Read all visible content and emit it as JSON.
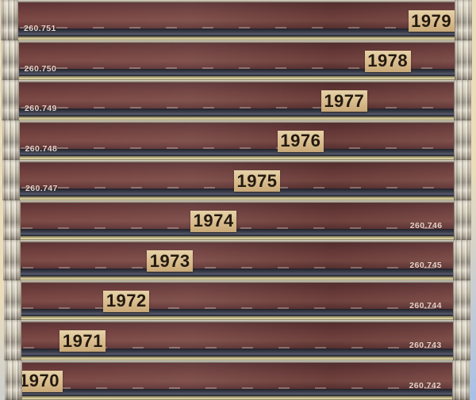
{
  "scene": {
    "subject": "stack of ten CD jewel cases viewed spine-on, each labeled with a year sticker and a printed catalog number"
  },
  "colors": {
    "spine_maroon": "#6f3e3c",
    "spine_maroon_dark": "#5c3233",
    "spine_maroon_light": "#7c4a45",
    "sticker_tan": "#d9bc8d",
    "sticker_text": "#231a10",
    "catalog_text": "#e9d2c8",
    "edge_gold": "#c3b787",
    "band_dark_slate": "#3c404d",
    "background_top": "#ecddba",
    "background_bottom": "#a9c0e4"
  },
  "cases": [
    {
      "year": "1979",
      "catalog": "260.751",
      "catalog_side": "left"
    },
    {
      "year": "1978",
      "catalog": "260.750",
      "catalog_side": "left"
    },
    {
      "year": "1977",
      "catalog": "260.749",
      "catalog_side": "left"
    },
    {
      "year": "1976",
      "catalog": "260.748",
      "catalog_side": "left"
    },
    {
      "year": "1975",
      "catalog": "260.747",
      "catalog_side": "left"
    },
    {
      "year": "1974",
      "catalog": "260.746",
      "catalog_side": "right"
    },
    {
      "year": "1973",
      "catalog": "260.745",
      "catalog_side": "right"
    },
    {
      "year": "1972",
      "catalog": "260.744",
      "catalog_side": "right"
    },
    {
      "year": "1971",
      "catalog": "260.743",
      "catalog_side": "right"
    },
    {
      "year": "1970",
      "catalog": "260.742",
      "catalog_side": "right"
    }
  ]
}
